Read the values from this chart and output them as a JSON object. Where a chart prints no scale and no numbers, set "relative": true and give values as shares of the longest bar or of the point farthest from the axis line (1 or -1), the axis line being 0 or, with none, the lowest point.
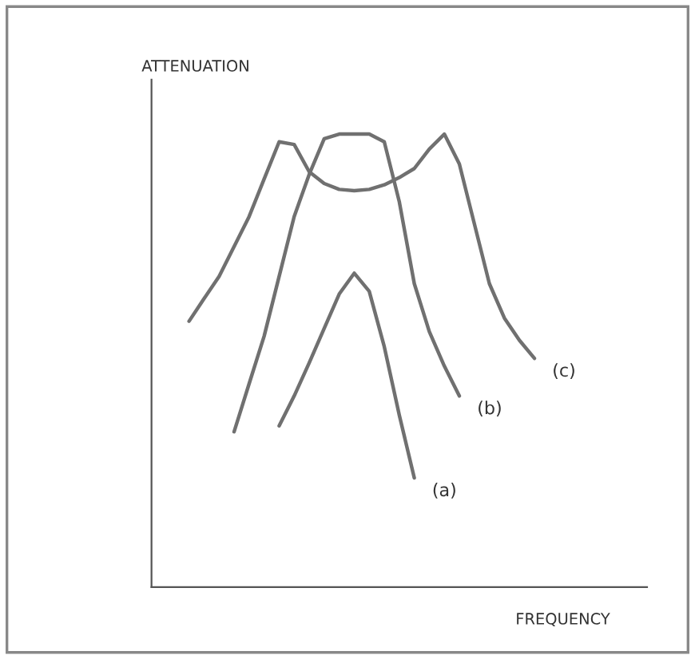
{
  "chart_data": {
    "type": "line",
    "relative": true,
    "xlabel": "FREQUENCY",
    "ylabel": "ATTENUATION",
    "categories": [
      null,
      null,
      null,
      null,
      null,
      null,
      null,
      null,
      null,
      null,
      null,
      null,
      null,
      null,
      null,
      null,
      null,
      null,
      null,
      null,
      null,
      null,
      null,
      null
    ],
    "series": [
      {
        "name": "(a)",
        "color": "#707070",
        "values": [
          null,
          null,
          null,
          null,
          null,
          null,
          0.356,
          0.422,
          0.495,
          0.571,
          0.647,
          0.693,
          0.653,
          0.531,
          0.38,
          0.241,
          null,
          null,
          null,
          null,
          null,
          null,
          null,
          null
        ]
      },
      {
        "name": "(b)",
        "color": "#707070",
        "values": [
          null,
          null,
          null,
          0.343,
          0.449,
          0.554,
          0.686,
          0.818,
          0.911,
          0.99,
          1.0,
          1.0,
          1.0,
          0.983,
          0.851,
          0.67,
          0.564,
          0.488,
          0.422,
          null,
          null,
          null,
          null,
          null
        ]
      },
      {
        "name": "(c)",
        "color": "#707070",
        "values": [
          0.587,
          0.637,
          0.686,
          0.752,
          0.818,
          0.901,
          0.983,
          0.977,
          0.917,
          0.891,
          0.878,
          0.875,
          0.878,
          0.888,
          0.904,
          0.924,
          0.967,
          1.0,
          0.934,
          0.802,
          0.67,
          0.594,
          0.545,
          0.505
        ]
      }
    ]
  }
}
